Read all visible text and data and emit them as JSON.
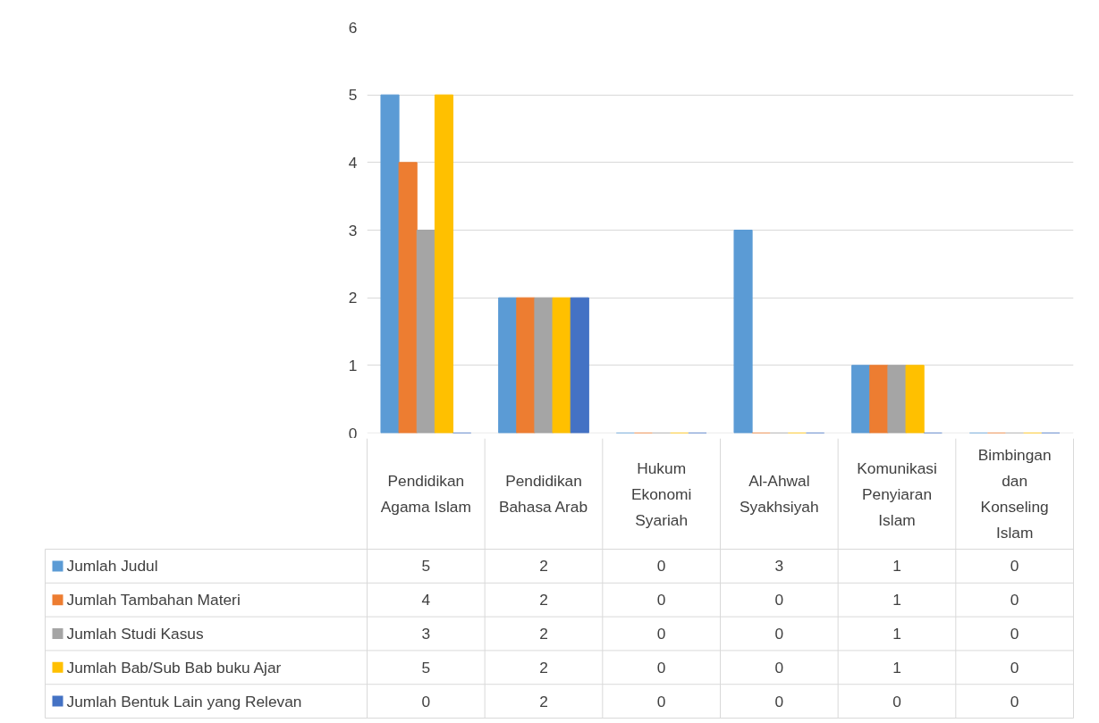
{
  "chart_data": {
    "type": "bar",
    "categories": [
      "Pendidikan Agama Islam",
      "Pendidikan Bahasa Arab",
      "Hukum Ekonomi Syariah",
      "Al-Ahwal Syakhsiyah",
      "Komunikasi Penyiaran Islam",
      "Bimbingan dan Konseling Islam"
    ],
    "series": [
      {
        "name": "Jumlah Judul",
        "color": "#5b9bd5",
        "values": [
          5,
          2,
          0,
          3,
          1,
          0
        ]
      },
      {
        "name": "Jumlah Tambahan Materi",
        "color": "#ed7d31",
        "values": [
          4,
          2,
          0,
          0,
          1,
          0
        ]
      },
      {
        "name": "Jumlah Studi Kasus",
        "color": "#a5a5a5",
        "values": [
          3,
          2,
          0,
          0,
          1,
          0
        ]
      },
      {
        "name": "Jumlah Bab/Sub Bab buku Ajar",
        "color": "#ffc000",
        "values": [
          5,
          2,
          0,
          0,
          1,
          0
        ]
      },
      {
        "name": "Jumlah Bentuk Lain yang Relevan",
        "color": "#4472c4",
        "values": [
          0,
          2,
          0,
          0,
          0,
          0
        ]
      }
    ],
    "ylim": [
      0,
      6
    ],
    "yticks": [
      0,
      1,
      2,
      3,
      4,
      5,
      6
    ],
    "grid": "y",
    "legend": "bottom",
    "data_labels": true
  }
}
